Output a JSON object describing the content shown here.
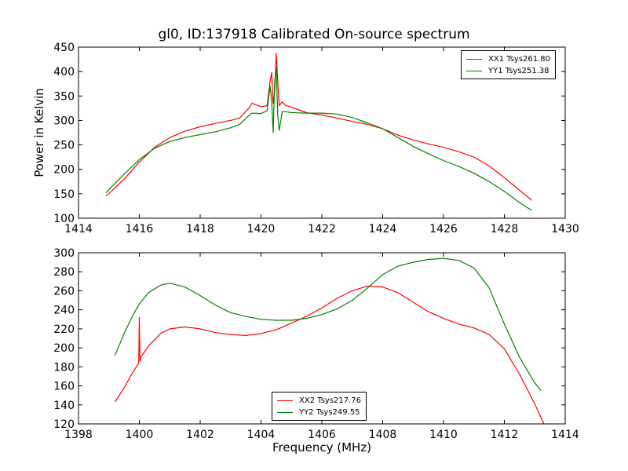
{
  "title": "gl0, ID:137918 Calibrated On-source spectrum",
  "chart_data": [
    {
      "type": "line",
      "ylabel": "Power in Kelvin",
      "xlabel": "",
      "xlim": [
        1414,
        1430
      ],
      "ylim": [
        100,
        450
      ],
      "xticks": [
        1414,
        1416,
        1418,
        1420,
        1422,
        1424,
        1426,
        1428,
        1430
      ],
      "yticks": [
        100,
        150,
        200,
        250,
        300,
        350,
        400,
        450
      ],
      "legend_position": "top-right",
      "series": [
        {
          "name": "XX1 Tsys261.80",
          "color": "#ff0000",
          "x": [
            1414.9,
            1415.5,
            1416,
            1416.5,
            1417,
            1417.5,
            1418,
            1418.5,
            1419,
            1419.3,
            1419.6,
            1419.7,
            1420,
            1420.2,
            1420.3,
            1420.35,
            1420.4,
            1420.45,
            1420.5,
            1420.55,
            1420.6,
            1420.7,
            1420.8,
            1421,
            1421.5,
            1422,
            1422.5,
            1423,
            1423.5,
            1424,
            1424.5,
            1425,
            1425.5,
            1426,
            1426.5,
            1427,
            1427.5,
            1428,
            1428.5,
            1428.9
          ],
          "y": [
            145,
            180,
            215,
            245,
            265,
            278,
            287,
            294,
            300,
            305,
            325,
            335,
            328,
            330,
            380,
            398,
            335,
            360,
            437,
            380,
            330,
            338,
            331,
            327,
            316,
            311,
            305,
            298,
            292,
            283,
            270,
            260,
            252,
            245,
            236,
            225,
            207,
            183,
            157,
            137
          ]
        },
        {
          "name": "YY1 Tsys251.38",
          "color": "#008000",
          "x": [
            1414.9,
            1415.5,
            1416,
            1416.5,
            1417,
            1417.5,
            1418,
            1418.5,
            1419,
            1419.3,
            1419.6,
            1419.7,
            1420,
            1420.2,
            1420.3,
            1420.35,
            1420.4,
            1420.45,
            1420.5,
            1420.55,
            1420.6,
            1420.7,
            1420.8,
            1421,
            1421.5,
            1422,
            1422.5,
            1423,
            1423.5,
            1424,
            1424.5,
            1425,
            1425.5,
            1426,
            1426.5,
            1427,
            1427.5,
            1428,
            1428.5,
            1428.9
          ],
          "y": [
            152,
            190,
            220,
            243,
            257,
            265,
            271,
            277,
            285,
            292,
            310,
            315,
            314,
            320,
            370,
            340,
            275,
            380,
            408,
            310,
            280,
            318,
            318,
            316,
            315,
            315,
            313,
            306,
            295,
            283,
            265,
            247,
            232,
            218,
            206,
            192,
            175,
            155,
            132,
            116
          ]
        }
      ]
    },
    {
      "type": "line",
      "ylabel": "",
      "xlabel": "Frequency (MHz)",
      "xlim": [
        1398,
        1414
      ],
      "ylim": [
        120,
        300
      ],
      "xticks": [
        1398,
        1400,
        1402,
        1404,
        1406,
        1408,
        1410,
        1412,
        1414
      ],
      "yticks": [
        120,
        140,
        160,
        180,
        200,
        220,
        240,
        260,
        280,
        300
      ],
      "legend_position": "bottom-center",
      "series": [
        {
          "name": "XX2 Tsys217.76",
          "color": "#ff0000",
          "x": [
            1399.2,
            1399.5,
            1399.8,
            1399.98,
            1400,
            1400.02,
            1400.05,
            1400.3,
            1400.7,
            1401,
            1401.5,
            1402,
            1402.5,
            1403,
            1403.5,
            1404,
            1404.5,
            1405,
            1405.5,
            1406,
            1406.5,
            1407,
            1407.5,
            1408,
            1408.5,
            1409,
            1409.5,
            1410,
            1410.5,
            1411,
            1411.5,
            1412,
            1412.5,
            1413,
            1413.3
          ],
          "y": [
            143,
            158,
            175,
            184,
            232,
            186,
            190,
            202,
            215,
            220,
            222,
            220,
            216,
            214,
            213,
            215,
            219,
            226,
            233,
            242,
            252,
            260,
            265,
            264,
            258,
            248,
            238,
            231,
            225,
            221,
            214,
            199,
            172,
            141,
            120
          ]
        },
        {
          "name": "YY2 Tsys249.55",
          "color": "#008000",
          "x": [
            1399.2,
            1399.5,
            1399.8,
            1400,
            1400.3,
            1400.7,
            1401,
            1401.5,
            1402,
            1402.5,
            1403,
            1403.5,
            1404,
            1404.5,
            1405,
            1405.5,
            1406,
            1406.5,
            1407,
            1407.5,
            1408,
            1408.5,
            1409,
            1409.5,
            1410,
            1410.5,
            1411,
            1411.5,
            1412,
            1412.5,
            1413,
            1413.2
          ],
          "y": [
            192,
            215,
            235,
            246,
            258,
            266,
            268,
            264,
            255,
            245,
            237,
            233,
            230,
            229,
            229,
            231,
            235,
            241,
            250,
            263,
            277,
            286,
            290,
            293,
            294,
            292,
            284,
            263,
            225,
            190,
            163,
            155
          ]
        }
      ]
    }
  ]
}
